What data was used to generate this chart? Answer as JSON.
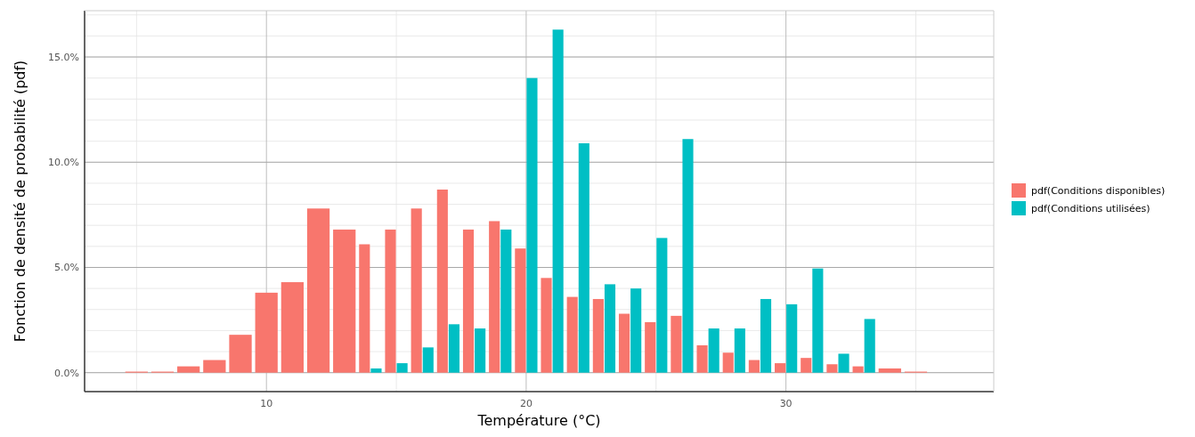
{
  "chart_data": {
    "type": "bar",
    "xlabel": "Température (°C)",
    "ylabel": "Fonction de densité de probabilité (pdf)",
    "x": [
      5,
      6,
      7,
      8,
      9,
      10,
      11,
      12,
      13,
      14,
      15,
      16,
      17,
      18,
      19,
      20,
      21,
      22,
      23,
      24,
      25,
      26,
      27,
      28,
      29,
      30,
      31,
      32,
      33,
      34,
      35
    ],
    "series": [
      {
        "name": "pdf(Conditions disponibles)",
        "color": "#f8766d",
        "values": [
          0.05,
          0.05,
          0.3,
          0.6,
          1.8,
          3.8,
          4.3,
          7.8,
          6.8,
          6.1,
          6.8,
          7.8,
          8.7,
          6.8,
          7.2,
          5.9,
          4.5,
          3.6,
          3.5,
          2.8,
          2.4,
          2.7,
          1.3,
          0.95,
          0.6,
          0.45,
          0.7,
          0.4,
          0.3,
          0.2,
          0.05
        ]
      },
      {
        "name": "pdf(Conditions utilisées)",
        "color": "#00bfc4",
        "values": [
          null,
          null,
          null,
          null,
          null,
          null,
          null,
          null,
          null,
          0.2,
          0.45,
          1.2,
          2.3,
          2.1,
          6.8,
          14.0,
          16.3,
          10.9,
          4.2,
          4.0,
          6.4,
          11.1,
          2.1,
          2.1,
          3.5,
          3.25,
          4.95,
          0.9,
          2.55,
          null,
          null
        ]
      }
    ],
    "xlim": [
      3,
      38
    ],
    "xticks": [
      10,
      20,
      30
    ],
    "ylim": [
      -0.9,
      17.2
    ],
    "yticks": [
      {
        "value": 0,
        "label": "0.0%"
      },
      {
        "value": 5,
        "label": "5.0%"
      },
      {
        "value": 10,
        "label": "10.0%"
      },
      {
        "value": 15,
        "label": "15.0%"
      }
    ],
    "grid": true,
    "legend": "right"
  }
}
